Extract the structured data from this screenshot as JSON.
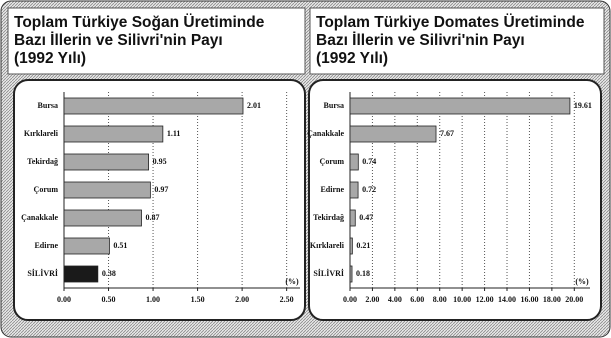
{
  "chart_data": [
    {
      "type": "bar",
      "orientation": "horizontal",
      "title": [
        "Toplam Türkiye Soğan Üretiminde",
        "Bazı İllerin ve Silivri'nin Payı",
        "(1992 Yılı)"
      ],
      "categories": [
        "Bursa",
        "Kırklareli",
        "Tekirdağ",
        "Çorum",
        "Çanakkale",
        "Edirne",
        "SİLİVRİ"
      ],
      "values": [
        2.01,
        1.11,
        0.95,
        0.97,
        0.87,
        0.51,
        0.38
      ],
      "colors": [
        "#a8a8a8",
        "#a8a8a8",
        "#a8a8a8",
        "#a8a8a8",
        "#a8a8a8",
        "#a8a8a8",
        "#1a1a1a"
      ],
      "unit": "(%)",
      "xlim": [
        0,
        2.65
      ],
      "xticks": [
        {
          "value": 0,
          "label": "0.00"
        },
        {
          "value": 0.5,
          "label": "0.50"
        },
        {
          "value": 1,
          "label": "1.00"
        },
        {
          "value": 1.5,
          "label": "1.50"
        },
        {
          "value": 2,
          "label": "2.00"
        },
        {
          "value": 2.5,
          "label": "2.50"
        }
      ],
      "grid": true
    },
    {
      "type": "bar",
      "orientation": "horizontal",
      "title": [
        "Toplam Türkiye Domates Üretiminde",
        "Bazı İllerin ve Silivri'nin Payı",
        "(1992 Yılı)"
      ],
      "categories": [
        "Bursa",
        "Çanakkale",
        "Çorum",
        "Edirne",
        "Tekirdağ",
        "Kırklareli",
        "SİLİVRİ"
      ],
      "values": [
        19.61,
        7.67,
        0.74,
        0.72,
        0.47,
        0.21,
        0.18
      ],
      "colors": [
        "#a8a8a8",
        "#a8a8a8",
        "#a8a8a8",
        "#a8a8a8",
        "#a8a8a8",
        "#a8a8a8",
        "#a8a8a8"
      ],
      "unit": "(%)",
      "xlim": [
        0,
        21.4
      ],
      "xticks": [
        {
          "value": 0,
          "label": "0.00"
        },
        {
          "value": 2,
          "label": "2.00"
        },
        {
          "value": 4,
          "label": "4.00"
        },
        {
          "value": 6,
          "label": "6.00"
        },
        {
          "value": 8,
          "label": "8.00"
        },
        {
          "value": 10,
          "label": "10.00"
        },
        {
          "value": 12,
          "label": "12.00"
        },
        {
          "value": 14,
          "label": "14.00"
        },
        {
          "value": 16,
          "label": "16.00"
        },
        {
          "value": 18,
          "label": "18.00"
        },
        {
          "value": 20,
          "label": "20.00"
        }
      ],
      "grid": true
    }
  ]
}
